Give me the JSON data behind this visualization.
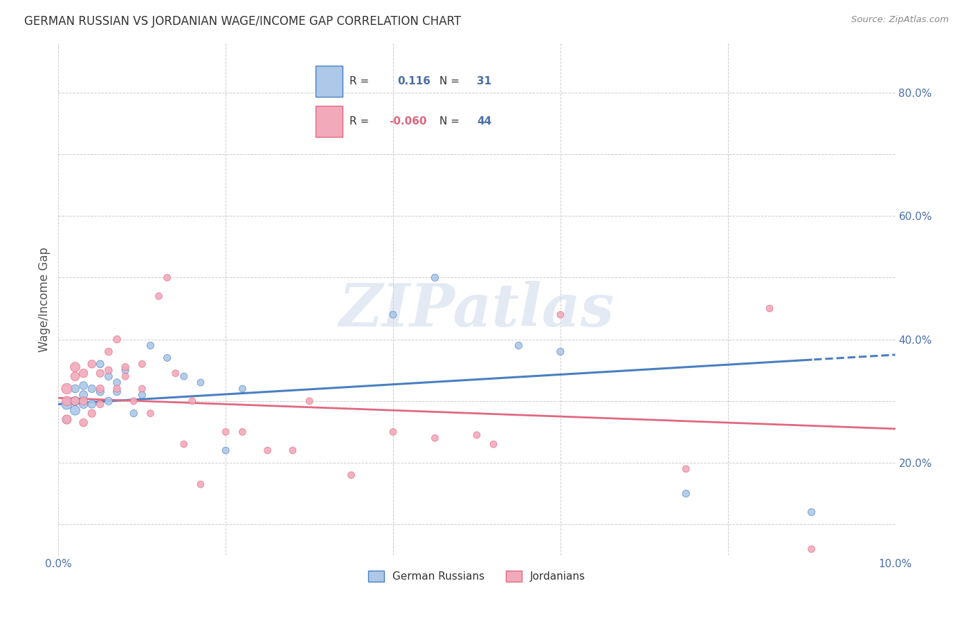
{
  "title": "GERMAN RUSSIAN VS JORDANIAN WAGE/INCOME GAP CORRELATION CHART",
  "source": "Source: ZipAtlas.com",
  "ylabel": "Wage/Income Gap",
  "xlim": [
    0.0,
    0.1
  ],
  "ylim": [
    0.05,
    0.88
  ],
  "blue_R": 0.116,
  "blue_N": 31,
  "pink_R": -0.06,
  "pink_N": 44,
  "blue_color": "#adc8e8",
  "pink_color": "#f2aabb",
  "blue_line_color": "#4a7fbf",
  "pink_line_color": "#e06880",
  "text_color": "#4a6fa8",
  "label_color": "#555555",
  "grid_color": "#cccccc",
  "watermark": "ZIPatlas",
  "blue_x": [
    0.001,
    0.001,
    0.002,
    0.002,
    0.002,
    0.003,
    0.003,
    0.003,
    0.004,
    0.004,
    0.005,
    0.005,
    0.006,
    0.006,
    0.007,
    0.007,
    0.008,
    0.009,
    0.01,
    0.011,
    0.013,
    0.015,
    0.017,
    0.02,
    0.022,
    0.04,
    0.045,
    0.055,
    0.06,
    0.075,
    0.09
  ],
  "blue_y": [
    0.295,
    0.27,
    0.285,
    0.3,
    0.32,
    0.295,
    0.31,
    0.325,
    0.295,
    0.32,
    0.315,
    0.36,
    0.3,
    0.34,
    0.315,
    0.33,
    0.35,
    0.28,
    0.31,
    0.39,
    0.37,
    0.34,
    0.33,
    0.22,
    0.32,
    0.44,
    0.5,
    0.39,
    0.38,
    0.15,
    0.12
  ],
  "pink_x": [
    0.001,
    0.001,
    0.001,
    0.002,
    0.002,
    0.002,
    0.003,
    0.003,
    0.003,
    0.004,
    0.004,
    0.005,
    0.005,
    0.005,
    0.006,
    0.006,
    0.007,
    0.007,
    0.008,
    0.008,
    0.009,
    0.01,
    0.01,
    0.011,
    0.012,
    0.013,
    0.014,
    0.015,
    0.016,
    0.017,
    0.02,
    0.022,
    0.025,
    0.028,
    0.03,
    0.035,
    0.04,
    0.045,
    0.05,
    0.052,
    0.06,
    0.075,
    0.085,
    0.09
  ],
  "pink_y": [
    0.32,
    0.3,
    0.27,
    0.355,
    0.34,
    0.3,
    0.345,
    0.3,
    0.265,
    0.36,
    0.28,
    0.345,
    0.32,
    0.295,
    0.38,
    0.35,
    0.4,
    0.32,
    0.355,
    0.34,
    0.3,
    0.36,
    0.32,
    0.28,
    0.47,
    0.5,
    0.345,
    0.23,
    0.3,
    0.165,
    0.25,
    0.25,
    0.22,
    0.22,
    0.3,
    0.18,
    0.25,
    0.24,
    0.245,
    0.23,
    0.44,
    0.19,
    0.45,
    0.06
  ],
  "blue_sizes": [
    120,
    80,
    100,
    90,
    70,
    80,
    75,
    70,
    70,
    65,
    65,
    60,
    65,
    60,
    60,
    58,
    55,
    55,
    55,
    55,
    52,
    50,
    50,
    50,
    50,
    50,
    55,
    55,
    55,
    55,
    55
  ],
  "pink_sizes": [
    120,
    100,
    90,
    100,
    85,
    80,
    80,
    75,
    70,
    70,
    65,
    65,
    65,
    60,
    60,
    58,
    58,
    55,
    55,
    52,
    52,
    52,
    50,
    50,
    50,
    50,
    50,
    50,
    50,
    50,
    50,
    50,
    50,
    50,
    50,
    50,
    50,
    50,
    50,
    50,
    50,
    50,
    50,
    50
  ],
  "trend_blue_intercept": 0.295,
  "trend_blue_slope": 0.8,
  "trend_pink_intercept": 0.305,
  "trend_pink_slope": -0.5
}
